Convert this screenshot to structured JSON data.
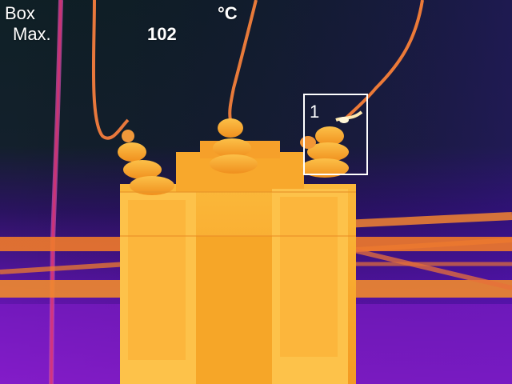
{
  "overlay": {
    "mode_label": "Box",
    "unit": "°C",
    "stat_label": "Max.",
    "stat_value": "102"
  },
  "measurement_box": {
    "number": "1"
  },
  "colors": {
    "background_cold": "#0f2026",
    "background_cool": "#3a0e7a",
    "background_purple": "#7a18c8",
    "warm_magenta": "#e0306a",
    "warm_orange": "#f08a1c",
    "hot_yellow": "#fcc040",
    "hottest_white": "#fff6d8",
    "overlay_text": "#ffffff"
  }
}
